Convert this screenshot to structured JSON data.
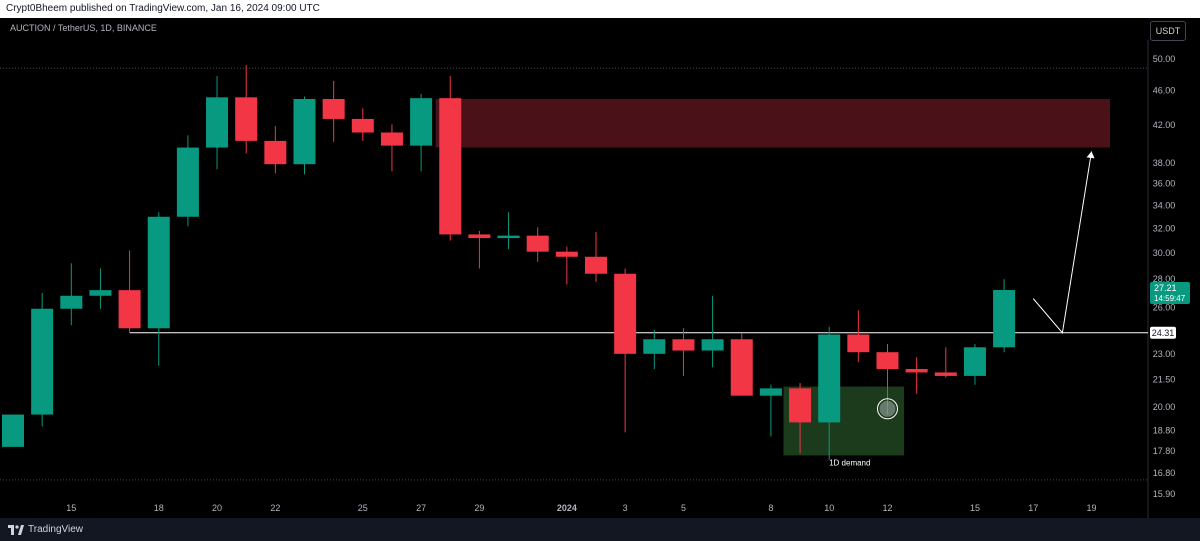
{
  "header": {
    "publisher_text": "Crypt0Bheem published on TradingView.com, Jan 16, 2024 09:00 UTC"
  },
  "chart_header": {
    "symbol_text": "AUCTION / TetherUS, 1D, BINANCE",
    "currency_button": "USDT"
  },
  "footer": {
    "brand": "TradingView"
  },
  "colors": {
    "up": "#089981",
    "down": "#f23645",
    "supply_zone": "#4a1218",
    "demand_zone": "#1c3a1c",
    "line": "#ffffff"
  },
  "chart_data": {
    "type": "candlestick",
    "title": "AUCTION / TetherUS, 1D, BINANCE",
    "y_axis": {
      "scale": "log",
      "range": [
        15.9,
        50.0
      ],
      "ticks": [
        15.9,
        16.8,
        17.8,
        18.8,
        20.0,
        21.5,
        23.0,
        26.0,
        28.0,
        30.0,
        32.0,
        34.0,
        36.0,
        38.0,
        42.0,
        46.0,
        50.0
      ],
      "tick_labels": [
        "15.90",
        "16.80",
        "17.80",
        "18.80",
        "20.00",
        "21.50",
        "23.00",
        "26.00",
        "28.00",
        "30.00",
        "32.00",
        "34.00",
        "36.00",
        "38.00",
        "42.00",
        "46.00",
        "50.00"
      ]
    },
    "x_axis": {
      "labels": [
        {
          "text": "15",
          "index": 2
        },
        {
          "text": "18",
          "index": 5
        },
        {
          "text": "20",
          "index": 7
        },
        {
          "text": "22",
          "index": 9
        },
        {
          "text": "25",
          "index": 12
        },
        {
          "text": "27",
          "index": 14
        },
        {
          "text": "29",
          "index": 16
        },
        {
          "text": "2024",
          "index": 19
        },
        {
          "text": "3",
          "index": 21
        },
        {
          "text": "5",
          "index": 23
        },
        {
          "text": "8",
          "index": 26
        },
        {
          "text": "10",
          "index": 28
        },
        {
          "text": "12",
          "index": 30
        },
        {
          "text": "15",
          "index": 33
        },
        {
          "text": "17",
          "index": 35
        },
        {
          "text": "19",
          "index": 37
        }
      ]
    },
    "candles": [
      {
        "o": 18.0,
        "h": 19.6,
        "l": 18.0,
        "c": 19.6
      },
      {
        "o": 19.6,
        "h": 27.0,
        "l": 19.0,
        "c": 25.9
      },
      {
        "o": 25.9,
        "h": 29.2,
        "l": 24.8,
        "c": 26.8
      },
      {
        "o": 26.8,
        "h": 28.8,
        "l": 25.9,
        "c": 27.2
      },
      {
        "o": 27.2,
        "h": 30.2,
        "l": 24.3,
        "c": 24.6
      },
      {
        "o": 24.6,
        "h": 33.4,
        "l": 22.3,
        "c": 33.0
      },
      {
        "o": 33.0,
        "h": 40.9,
        "l": 32.2,
        "c": 39.6
      },
      {
        "o": 39.6,
        "h": 47.8,
        "l": 37.4,
        "c": 45.2
      },
      {
        "o": 45.2,
        "h": 49.2,
        "l": 39.0,
        "c": 40.3
      },
      {
        "o": 40.3,
        "h": 41.9,
        "l": 37.0,
        "c": 37.9
      },
      {
        "o": 37.9,
        "h": 45.3,
        "l": 36.9,
        "c": 45.0
      },
      {
        "o": 45.0,
        "h": 47.2,
        "l": 40.2,
        "c": 42.7
      },
      {
        "o": 42.7,
        "h": 43.9,
        "l": 40.3,
        "c": 41.2
      },
      {
        "o": 41.2,
        "h": 42.1,
        "l": 37.2,
        "c": 39.8
      },
      {
        "o": 39.8,
        "h": 45.6,
        "l": 37.2,
        "c": 45.1
      },
      {
        "o": 45.1,
        "h": 47.8,
        "l": 31.0,
        "c": 31.5
      },
      {
        "o": 31.5,
        "h": 31.8,
        "l": 28.8,
        "c": 31.2
      },
      {
        "o": 31.2,
        "h": 33.4,
        "l": 30.3,
        "c": 31.4
      },
      {
        "o": 31.4,
        "h": 32.1,
        "l": 29.3,
        "c": 30.1
      },
      {
        "o": 30.1,
        "h": 30.5,
        "l": 27.6,
        "c": 29.7
      },
      {
        "o": 29.7,
        "h": 31.7,
        "l": 27.8,
        "c": 28.4
      },
      {
        "o": 28.4,
        "h": 28.8,
        "l": 18.7,
        "c": 23.0
      },
      {
        "o": 23.0,
        "h": 24.5,
        "l": 22.1,
        "c": 23.9
      },
      {
        "o": 23.9,
        "h": 24.6,
        "l": 21.7,
        "c": 23.2
      },
      {
        "o": 23.2,
        "h": 26.8,
        "l": 22.2,
        "c": 23.9
      },
      {
        "o": 23.9,
        "h": 24.3,
        "l": 20.6,
        "c": 20.6
      },
      {
        "o": 20.6,
        "h": 21.2,
        "l": 18.5,
        "c": 21.0
      },
      {
        "o": 21.0,
        "h": 21.3,
        "l": 17.7,
        "c": 19.2
      },
      {
        "o": 19.2,
        "h": 24.7,
        "l": 17.4,
        "c": 24.2
      },
      {
        "o": 24.2,
        "h": 25.8,
        "l": 22.5,
        "c": 23.1
      },
      {
        "o": 23.1,
        "h": 23.6,
        "l": 19.6,
        "c": 22.1
      },
      {
        "o": 22.1,
        "h": 22.8,
        "l": 20.7,
        "c": 21.9
      },
      {
        "o": 21.9,
        "h": 23.4,
        "l": 21.6,
        "c": 21.7
      },
      {
        "o": 21.7,
        "h": 23.6,
        "l": 21.2,
        "c": 23.4
      },
      {
        "o": 23.4,
        "h": 28.0,
        "l": 23.1,
        "c": 27.21
      }
    ],
    "horizontal_line": {
      "value": 24.31,
      "label": "24.31",
      "from_index": 4
    },
    "last_price": {
      "label": "27.21",
      "countdown": "14:59:47"
    },
    "supply_zone": {
      "from_index": 14.5,
      "to_index": 38.5,
      "low": 39.6,
      "high": 45.0
    },
    "demand_zone": {
      "from_index": 26.5,
      "to_index": 30.5,
      "low": 17.6,
      "high": 21.1,
      "label": "1D demand"
    },
    "projection": [
      {
        "index": 35,
        "value": 26.6
      },
      {
        "index": 36,
        "value": 24.31
      },
      {
        "index": 37,
        "value": 39.2
      }
    ],
    "marker_circle": {
      "index": 30,
      "value": 19.9
    }
  }
}
